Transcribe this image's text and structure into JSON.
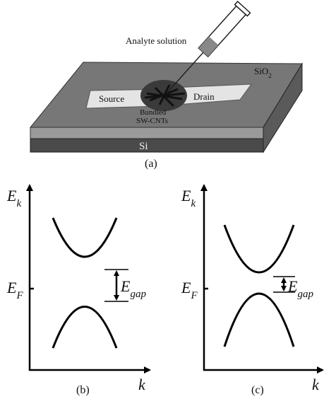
{
  "panel_a": {
    "analyte_label": "Analyte solution",
    "oxide_label": {
      "base": "SiO",
      "sub": "2"
    },
    "source_label": "Source",
    "drain_label": "Drain",
    "cnt_label": [
      "Bundled",
      "SW-CNTs"
    ],
    "substrate_label": "Si",
    "caption": "(a)"
  },
  "panel_b": {
    "y_axis": {
      "base": "E",
      "sub": "k"
    },
    "fermi": {
      "base": "E",
      "sub": "F"
    },
    "gap": {
      "base": "E",
      "sub": "gap"
    },
    "x_axis": "k",
    "caption": "(b)"
  },
  "panel_c": {
    "y_axis": {
      "base": "E",
      "sub": "k"
    },
    "fermi": {
      "base": "E",
      "sub": "F"
    },
    "gap": {
      "base": "E",
      "sub": "gap"
    },
    "x_axis": "k",
    "caption": "(c)"
  }
}
